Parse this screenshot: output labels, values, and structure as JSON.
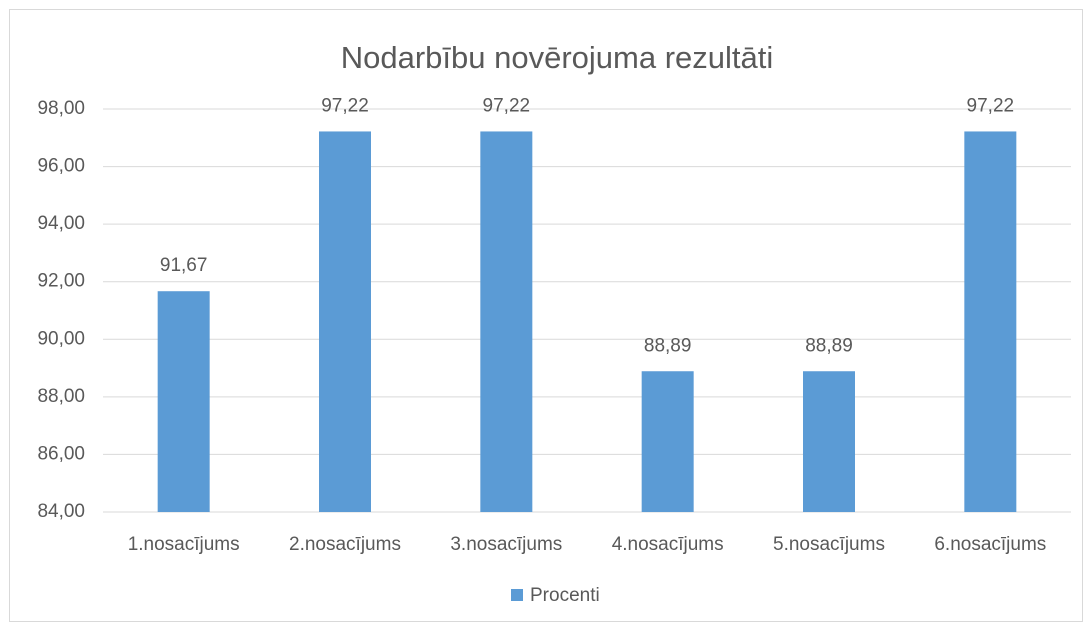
{
  "chart_data": {
    "type": "bar",
    "title": "Nodarbību novērojuma rezultāti",
    "categories": [
      "1.nosacījums",
      "2.nosacījums",
      "3.nosacījums",
      "4.nosacījums",
      "5.nosacījums",
      "6.nosacījums"
    ],
    "series": [
      {
        "name": "Procenti",
        "color": "#5b9bd5",
        "values": [
          91.67,
          97.22,
          97.22,
          88.89,
          88.89,
          97.22
        ],
        "value_labels": [
          "91,67",
          "97,22",
          "97,22",
          "88,89",
          "88,89",
          "97,22"
        ]
      }
    ],
    "ylim": [
      84,
      98
    ],
    "yticks": [
      {
        "value": 84,
        "label": "84,00"
      },
      {
        "value": 86,
        "label": "86,00"
      },
      {
        "value": 88,
        "label": "88,00"
      },
      {
        "value": 90,
        "label": "90,00"
      },
      {
        "value": 92,
        "label": "92,00"
      },
      {
        "value": 94,
        "label": "94,00"
      },
      {
        "value": 96,
        "label": "96,00"
      },
      {
        "value": 98,
        "label": "98,00"
      }
    ],
    "grid": true,
    "legend": "bottom"
  }
}
